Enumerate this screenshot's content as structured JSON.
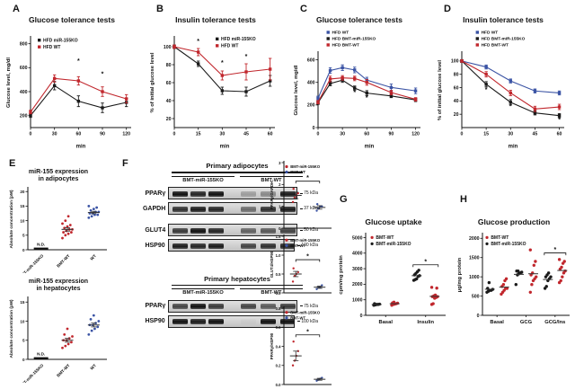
{
  "panel_labels": [
    "A",
    "B",
    "C",
    "D",
    "E",
    "F",
    "G",
    "H"
  ],
  "colors": {
    "red": "#c1272d",
    "blue": "#3a53a4",
    "black": "#1a1a1a"
  },
  "blots": {
    "adipocytes": {
      "section_title": "Primary adipocytes",
      "col_labels": [
        "BMT-miR-155KO",
        "BMT-WT"
      ],
      "rows": [
        {
          "protein": "PPARγ",
          "kda": "75 kDa"
        },
        {
          "protein": "GAPDH",
          "kda": "37 kDa"
        },
        {
          "protein": "GLUT4",
          "kda": "50 kDa"
        },
        {
          "protein": "HSP90",
          "kda": "100 kDa"
        }
      ]
    },
    "hepatocytes": {
      "section_title": "Primary hepatocytes",
      "col_labels": [
        "BMT-miR-155KO",
        "BMT-WT"
      ],
      "rows": [
        {
          "protein": "PPARγ",
          "kda": "75 kDa"
        },
        {
          "protein": "HSP90",
          "kda": "100 kDa"
        }
      ]
    }
  },
  "chart_data": [
    {
      "type": "line",
      "panel": "A",
      "title": "Glucose tolerance tests",
      "xlabel": "min",
      "ylabel": "Glucose level, mg/dl",
      "x": [
        0,
        30,
        60,
        90,
        120
      ],
      "xticks": [
        0,
        30,
        60,
        90,
        120
      ],
      "xlim": [
        0,
        126
      ],
      "ylim": [
        100,
        850
      ],
      "yticks": [
        200,
        400,
        600,
        800
      ],
      "m": {
        "l": 30,
        "r": 10,
        "t": 10,
        "b": 24
      },
      "legend": {
        "fx": 0.25,
        "fy": 0.1,
        "dy": 7.5,
        "f": 5
      },
      "series": [
        {
          "name": "HFD miR-155KO",
          "color": "#1a1a1a",
          "values": [
            200,
            450,
            320,
            265,
            310
          ],
          "err": [
            15,
            35,
            45,
            40,
            35
          ]
        },
        {
          "name": "HFD WT",
          "color": "#c1272d",
          "values": [
            230,
            510,
            490,
            400,
            340
          ],
          "err": [
            15,
            30,
            35,
            40,
            35
          ]
        }
      ],
      "annotations": [
        {
          "x": 60,
          "y": 640,
          "text": "*"
        },
        {
          "x": 90,
          "y": 530,
          "text": "*"
        }
      ]
    },
    {
      "type": "line",
      "panel": "B",
      "title": "Insulin tolerance tests",
      "xlabel": "min",
      "ylabel": "% of initial glucose level",
      "x": [
        0,
        15,
        30,
        45,
        60
      ],
      "xticks": [
        0,
        15,
        30,
        45,
        60
      ],
      "xlim": [
        0,
        63
      ],
      "ylim": [
        10,
        110
      ],
      "yticks": [
        20,
        40,
        60,
        80,
        100
      ],
      "m": {
        "l": 30,
        "r": 10,
        "t": 10,
        "b": 24
      },
      "legend": {
        "fx": 0.5,
        "fy": 0.09,
        "dy": 7.5,
        "f": 5
      },
      "series": [
        {
          "name": "HFD miR-155KO",
          "color": "#1a1a1a",
          "values": [
            100,
            81,
            51,
            50,
            62
          ],
          "err": [
            2,
            3,
            4,
            5,
            6
          ]
        },
        {
          "name": "HFD WT",
          "color": "#c1272d",
          "values": [
            100,
            94,
            68,
            72,
            75
          ],
          "err": [
            2,
            4,
            5,
            9,
            12
          ]
        }
      ],
      "annotations": [
        {
          "x": 15,
          "y": 104,
          "text": "*"
        },
        {
          "x": 30,
          "y": 80,
          "text": "*"
        },
        {
          "x": 45,
          "y": 87,
          "text": "*"
        }
      ]
    },
    {
      "type": "line",
      "panel": "C",
      "title": "Glucose tolerance tests",
      "xlabel": "min",
      "ylabel": "Glucose level, mg/dl",
      "x": [
        0,
        15,
        30,
        45,
        60,
        90,
        120
      ],
      "xticks": [
        0,
        30,
        60,
        90,
        120
      ],
      "xlim": [
        0,
        126
      ],
      "ylim": [
        0,
        660
      ],
      "yticks": [
        0,
        200,
        400,
        600
      ],
      "m": {
        "l": 30,
        "r": 8,
        "t": 27,
        "b": 24
      },
      "legend": {
        "fx": 0.26,
        "fy": 0.035,
        "dy": 7,
        "f": 4.8
      },
      "series": [
        {
          "name": "HFD WT",
          "color": "#3a53a4",
          "values": [
            260,
            505,
            530,
            510,
            420,
            355,
            325
          ],
          "err": [
            18,
            25,
            25,
            25,
            25,
            30,
            25
          ]
        },
        {
          "name": "HFD BMT-miR-155KO",
          "color": "#1a1a1a",
          "values": [
            220,
            390,
            420,
            350,
            305,
            280,
            245
          ],
          "err": [
            15,
            20,
            20,
            18,
            22,
            15,
            15
          ]
        },
        {
          "name": "HFD BMT-WT",
          "color": "#c1272d",
          "values": [
            225,
            430,
            440,
            435,
            400,
            310,
            250
          ],
          "err": [
            15,
            25,
            20,
            20,
            25,
            20,
            15
          ]
        }
      ],
      "annotations": [
        {
          "x": 45,
          "y": 295,
          "text": "*"
        },
        {
          "x": 60,
          "y": 248,
          "text": "*"
        }
      ]
    },
    {
      "type": "line",
      "panel": "D",
      "title": "Insulin tolerance tests",
      "xlabel": "min",
      "ylabel": "% of initial glucose level",
      "x": [
        0,
        15,
        30,
        45,
        60
      ],
      "xticks": [
        0,
        15,
        30,
        45,
        60
      ],
      "xlim": [
        0,
        63
      ],
      "ylim": [
        0,
        112
      ],
      "yticks": [
        20,
        40,
        60,
        80,
        100
      ],
      "m": {
        "l": 30,
        "r": 8,
        "t": 27,
        "b": 24
      },
      "legend": {
        "fx": 0.3,
        "fy": 0.035,
        "dy": 7,
        "f": 4.8
      },
      "series": [
        {
          "name": "HFD WT",
          "color": "#3a53a4",
          "values": [
            100,
            91,
            70,
            55,
            52
          ],
          "err": [
            2,
            3,
            3,
            3,
            3
          ]
        },
        {
          "name": "HFD BMT-miR-155KO",
          "color": "#1a1a1a",
          "values": [
            100,
            65,
            38,
            22,
            18
          ],
          "err": [
            2,
            4,
            4,
            3,
            3
          ]
        },
        {
          "name": "HFD BMT-WT",
          "color": "#c1272d",
          "values": [
            100,
            80,
            52,
            28,
            31
          ],
          "err": [
            2,
            4,
            4,
            4,
            4
          ]
        }
      ],
      "annotations": [
        {
          "x": 15,
          "y": 54,
          "text": "*"
        },
        {
          "x": 30,
          "y": 29,
          "text": "*"
        },
        {
          "x": 60,
          "y": 9,
          "text": "*"
        }
      ]
    },
    {
      "type": "scatter",
      "panel": "E",
      "title": "miR-155 expression",
      "title2": "in adipocytes",
      "ylabel": "Absolute concentration (pM)",
      "ylim": [
        0,
        21
      ],
      "yticks": [
        0,
        5,
        10,
        15,
        20
      ],
      "m": {
        "l": 24,
        "r": 6,
        "t": 4,
        "b": 26
      },
      "tf": 4.6,
      "ylf": 4.8,
      "xrot": true,
      "nd_label": "N.D.",
      "spread": 5.5,
      "pr": 1.4,
      "groups": [
        {
          "label": "BMT-miR-155KO",
          "color": "#1a1a1a",
          "nd": true
        },
        {
          "label": "BMT-WT",
          "color": "#c1272d",
          "values": [
            4,
            5,
            5.5,
            6,
            6,
            6.5,
            7,
            7,
            7.5,
            8,
            8.5,
            9,
            10,
            11.5
          ],
          "mean": 7,
          "sem": 0.6
        },
        {
          "label": "WT",
          "color": "#3a53a4",
          "values": [
            11,
            11.5,
            12,
            12,
            12.5,
            12.5,
            13,
            13,
            13.5,
            14,
            14.5,
            15
          ],
          "mean": 12.8,
          "sem": 0.4
        }
      ]
    },
    {
      "type": "scatter",
      "panel": "E",
      "title": "miR-155 expression",
      "title2": "in hepatocytes",
      "ylabel": "Absolute concentration (pM)",
      "ylim": [
        0,
        16
      ],
      "yticks": [
        0,
        5,
        10,
        15
      ],
      "m": {
        "l": 24,
        "r": 6,
        "t": 4,
        "b": 26
      },
      "tf": 4.6,
      "ylf": 4.8,
      "xrot": true,
      "nd_label": "N.D.",
      "spread": 5.5,
      "pr": 1.4,
      "groups": [
        {
          "label": "BMT-miR-155KO",
          "color": "#1a1a1a",
          "nd": true
        },
        {
          "label": "BMT-WT",
          "color": "#c1272d",
          "values": [
            3,
            3.5,
            4,
            4.5,
            5,
            5,
            5.5,
            6,
            6.5,
            8
          ],
          "mean": 5,
          "sem": 0.5
        },
        {
          "label": "WT",
          "color": "#3a53a4",
          "values": [
            6.5,
            7.5,
            8,
            8.5,
            9,
            9,
            9.5,
            10,
            10.5,
            11.5
          ],
          "mean": 9,
          "sem": 0.5
        }
      ]
    },
    {
      "type": "scatter",
      "panel": "F",
      "ylabel": "PPARγ/GAPDH",
      "ylim": [
        0,
        3
      ],
      "yticks": [
        0,
        1,
        2,
        3
      ],
      "m": {
        "l": 16,
        "r": 3,
        "t": 3,
        "b": 6
      },
      "tf": 4.2,
      "ylf": 4.4,
      "ylx": 4,
      "spread": 3.2,
      "pr": 1.2,
      "legend": {
        "fx": 0.24,
        "fy": 0.1,
        "dy": 6,
        "f": 4.2
      },
      "groups": [
        {
          "label": "BMT-miR-155KO",
          "color": "#c1272d",
          "values": [
            1.2,
            1.4,
            1.5,
            1.6,
            1.8
          ],
          "mean": 1.5,
          "sem": 0.15
        },
        {
          "label": "BMT-WT",
          "color": "#3a53a4",
          "values": [
            0.8,
            0.9,
            1,
            1,
            1.1
          ],
          "mean": 0.95,
          "sem": 0.08
        }
      ],
      "sig": {
        "g1": 0,
        "g2": 1,
        "y": 2.15,
        "text": "*"
      }
    },
    {
      "type": "scatter",
      "panel": "F",
      "ylabel": "GLUT4/HSP90",
      "ylim": [
        0,
        1.5
      ],
      "yticks": [
        "0.0",
        "0.5",
        "1.0",
        "1.5"
      ],
      "m": {
        "l": 16,
        "r": 3,
        "t": 3,
        "b": 6
      },
      "tf": 4.2,
      "ylf": 4.4,
      "ylx": 4,
      "spread": 3.2,
      "pr": 1.2,
      "legend": {
        "fx": 0.24,
        "fy": 0.11,
        "dy": 6,
        "f": 4.2
      },
      "groups": [
        {
          "label": "BMT-miR-155KO",
          "color": "#c1272d",
          "values": [
            0.3,
            0.45,
            0.5,
            0.55,
            0.65
          ],
          "mean": 0.5,
          "sem": 0.07
        },
        {
          "label": "BMT-WT",
          "color": "#3a53a4",
          "values": [
            0.1,
            0.15,
            0.15,
            0.2
          ],
          "mean": 0.15,
          "sem": 0.03
        }
      ],
      "sig": {
        "g1": 0,
        "g2": 1,
        "y": 0.88,
        "text": "*"
      }
    },
    {
      "type": "scatter",
      "panel": "F",
      "ylabel": "PPARγ/HSP90",
      "ylim": [
        0,
        0.8
      ],
      "yticks": [
        "0.0",
        "0.2",
        "0.4",
        "0.6",
        "0.8"
      ],
      "m": {
        "l": 16,
        "r": 3,
        "t": 3,
        "b": 6
      },
      "tf": 4.2,
      "ylf": 4.4,
      "ylx": 4,
      "spread": 3.2,
      "pr": 1.2,
      "legend": {
        "fx": 0.24,
        "fy": 0.09,
        "dy": 6,
        "f": 4.2
      },
      "groups": [
        {
          "label": "BMT-miR-155KO",
          "color": "#c1272d",
          "values": [
            0.2,
            0.25,
            0.3,
            0.35,
            0.45
          ],
          "mean": 0.3,
          "sem": 0.05
        },
        {
          "label": "BMT-WT",
          "color": "#3a53a4",
          "values": [
            0.04,
            0.05,
            0.06,
            0.07
          ],
          "mean": 0.055,
          "sem": 0.01
        }
      ],
      "sig": {
        "g1": 0,
        "g2": 1,
        "y": 0.52,
        "text": "*"
      }
    },
    {
      "type": "scatter-group",
      "panel": "G",
      "title": "Glucose uptake",
      "ylabel": "cpm/mg protein",
      "categories": [
        "Basal",
        "Insulin"
      ],
      "ylim": [
        0,
        5200
      ],
      "yticks": [
        0,
        1000,
        2000,
        3000,
        4000,
        5000
      ],
      "m": {
        "l": 33,
        "r": 6,
        "t": 6,
        "b": 16
      },
      "tf": 5.2,
      "ylf": 5.8,
      "dodge": 10,
      "legend": {
        "fx": 0.3,
        "fy": 0.09,
        "dy": 7,
        "f": 5
      },
      "series": [
        {
          "name": "BMT-WT",
          "color": "#c1272d",
          "offset": 1,
          "values": [
            [
              650,
              700,
              720,
              750,
              780,
              800,
              850
            ],
            [
              700,
              750,
              1100,
              1150,
              1200,
              1200,
              1250,
              1300,
              1750,
              1800
            ]
          ]
        },
        {
          "name": "BMT-miR-155KO",
          "color": "#1a1a1a",
          "offset": -1,
          "values": [
            [
              650,
              670,
              700,
              700,
              720,
              750
            ],
            [
              2250,
              2300,
              2350,
              2500,
              2550,
              2600,
              2700,
              2800,
              2900
            ]
          ]
        }
      ],
      "sig": {
        "cat": 1,
        "y": 3250,
        "text": "*"
      }
    },
    {
      "type": "scatter-group",
      "panel": "H",
      "title": "Glucose production",
      "ylabel": "μg/mg protein",
      "categories": [
        "Basal",
        "GCG",
        "GCG/Ins"
      ],
      "ylim": [
        0,
        2100
      ],
      "yticks": [
        0,
        500,
        1000,
        1500,
        2000
      ],
      "m": {
        "l": 31,
        "r": 4,
        "t": 6,
        "b": 16
      },
      "tf": 5.2,
      "ylf": 5.8,
      "dodge": 8,
      "legend": {
        "fx": 0.26,
        "fy": 0.09,
        "dy": 7,
        "f": 5
      },
      "series": [
        {
          "name": "BMT-WT",
          "color": "#c1272d",
          "offset": 1,
          "values": [
            [
              550,
              600,
              650,
              700,
              700,
              750,
              800,
              900,
              950
            ],
            [
              600,
              800,
              900,
              950,
              1000,
              1050,
              1100,
              1300,
              1400,
              1700
            ],
            [
              850,
              900,
              1000,
              1100,
              1150,
              1200,
              1250,
              1350,
              1400,
              1450
            ]
          ]
        },
        {
          "name": "BMT-miR-155KO",
          "color": "#1a1a1a",
          "offset": -1,
          "values": [
            [
              600,
              625,
              650,
              650,
              675,
              700,
              850
            ],
            [
              800,
              1050,
              1080,
              1100,
              1120,
              1150,
              1150
            ],
            [
              700,
              750,
              900,
              950,
              1000,
              1000,
              1050,
              1100
            ]
          ]
        }
      ],
      "sig": {
        "cat": 2,
        "y": 1620,
        "text": "*"
      }
    }
  ]
}
